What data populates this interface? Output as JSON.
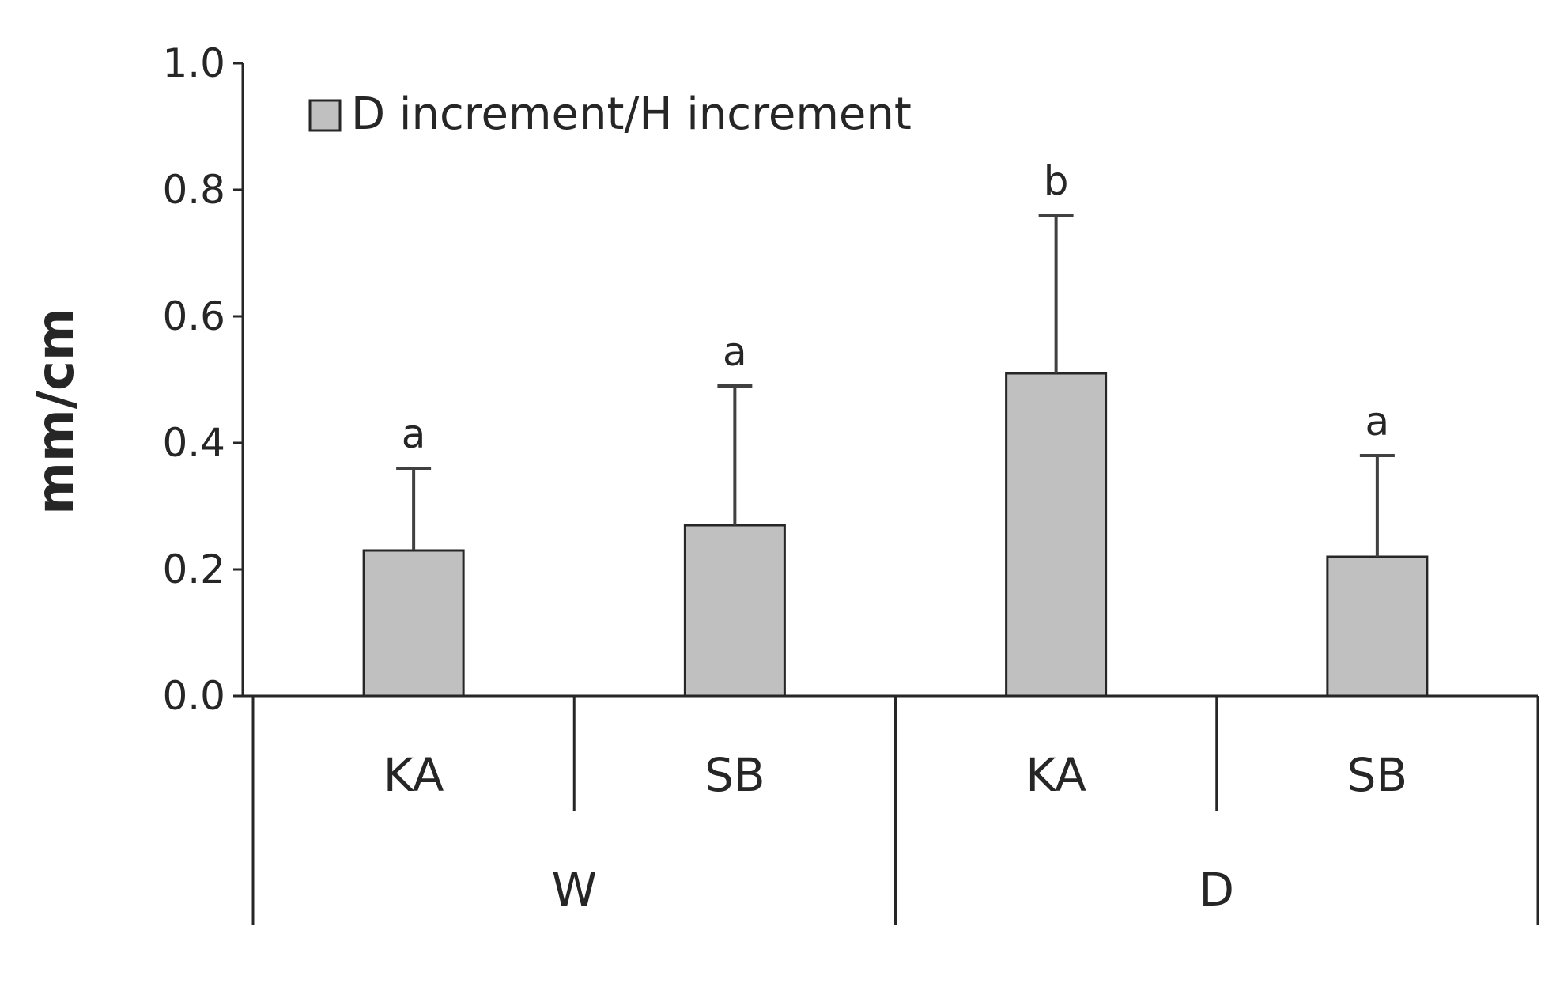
{
  "chart_data": {
    "type": "bar",
    "ylabel": "mm/cm",
    "ylim": [
      0,
      1.0
    ],
    "yticks": [
      0.0,
      0.2,
      0.4,
      0.6,
      0.8,
      1.0
    ],
    "ytick_labels": [
      "0.0",
      "0.2",
      "0.4",
      "0.6",
      "0.8",
      "1.0"
    ],
    "categories": [
      "KA",
      "SB",
      "KA",
      "SB"
    ],
    "groups": [
      {
        "label": "W",
        "categories": [
          "KA",
          "SB"
        ]
      },
      {
        "label": "D",
        "categories": [
          "KA",
          "SB"
        ]
      }
    ],
    "legend": {
      "placement": "top-left"
    },
    "series": [
      {
        "name": "D increment/H increment",
        "color": "#c0c0c0",
        "values": [
          0.23,
          0.27,
          0.51,
          0.22
        ],
        "error_upper": [
          0.36,
          0.49,
          0.76,
          0.38
        ],
        "significance": [
          "a",
          "a",
          "b",
          "a"
        ]
      }
    ],
    "grid": false
  }
}
